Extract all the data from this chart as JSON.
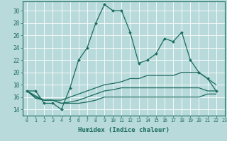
{
  "xlabel": "Humidex (Indice chaleur)",
  "xlim": [
    -0.5,
    23
  ],
  "ylim": [
    13,
    31.5
  ],
  "yticks": [
    14,
    16,
    18,
    20,
    22,
    24,
    26,
    28,
    30
  ],
  "xticks": [
    0,
    1,
    2,
    3,
    4,
    5,
    6,
    7,
    8,
    9,
    10,
    11,
    12,
    13,
    14,
    15,
    16,
    17,
    18,
    19,
    20,
    21,
    22,
    23
  ],
  "bg_color": "#b8dada",
  "line_color": "#1a6b5e",
  "grid_color": "#ffffff",
  "series_main": [
    17,
    17,
    15,
    15,
    14,
    17.5,
    22,
    24,
    28,
    31,
    30,
    30,
    26.5,
    21.5,
    22,
    23,
    25.5,
    25,
    26.5,
    22,
    20,
    19,
    17
  ],
  "series_lines": [
    [
      17,
      16.2,
      15.5,
      15.5,
      15.5,
      16,
      16.5,
      17,
      17.5,
      18,
      18.2,
      18.5,
      19,
      19,
      19.5,
      19.5,
      19.5,
      19.5,
      20,
      20,
      20,
      19,
      18
    ],
    [
      17,
      16,
      15.5,
      15.5,
      15,
      15.2,
      15.5,
      16,
      16.5,
      17,
      17.2,
      17.5,
      17.5,
      17.5,
      17.5,
      17.5,
      17.5,
      17.5,
      17.5,
      17.5,
      17.5,
      17,
      17
    ],
    [
      17,
      15.8,
      15.5,
      15.5,
      15,
      15,
      15,
      15.2,
      15.5,
      16,
      16,
      16,
      16,
      16,
      16,
      16,
      16,
      16,
      16,
      16,
      16,
      16.5,
      16.5
    ]
  ]
}
